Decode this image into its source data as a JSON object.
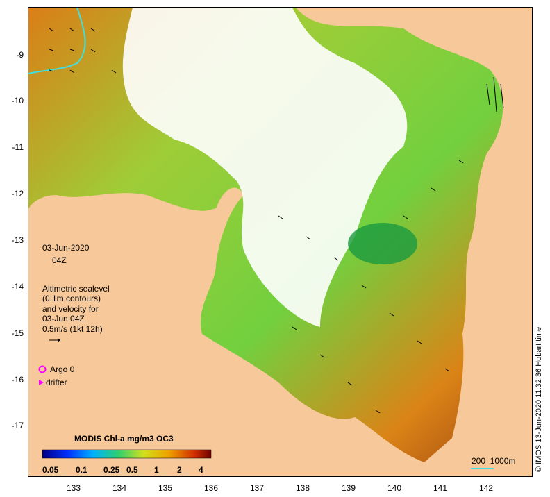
{
  "map": {
    "date": "03-Jun-2020",
    "time": "04Z",
    "velocity_title": "Altimetric sealevel",
    "velocity_contours": "(0.1m contours)",
    "velocity_for": "and velocity for",
    "velocity_time": "03-Jun 04Z",
    "velocity_scale": "0.5m/s (1kt 12h)",
    "argo_label": "Argo 0",
    "drifter_label": "drifter",
    "colorbar_title": "MODIS Chl-a mg/m3 OC3",
    "colorbar_ticks": [
      "0.05",
      "0.1",
      "0.25",
      "0.5",
      "1",
      "2",
      "4"
    ],
    "depth_scale": "200  1000m",
    "credit": "© IMOS 13-Jun-2020 11:32:36 Hobart time",
    "y_ticks": [
      "-9",
      "-10",
      "-11",
      "-12",
      "-13",
      "-14",
      "-15",
      "-16",
      "-17"
    ],
    "x_ticks": [
      "133",
      "134",
      "135",
      "136",
      "137",
      "138",
      "139",
      "140",
      "141",
      "142"
    ],
    "colors": {
      "land": "#f7c99a",
      "ocean_low": "#22b14c",
      "ocean_high": "#c85a0a",
      "argo": "#ff00ff",
      "contour": "#40e0e0"
    }
  }
}
